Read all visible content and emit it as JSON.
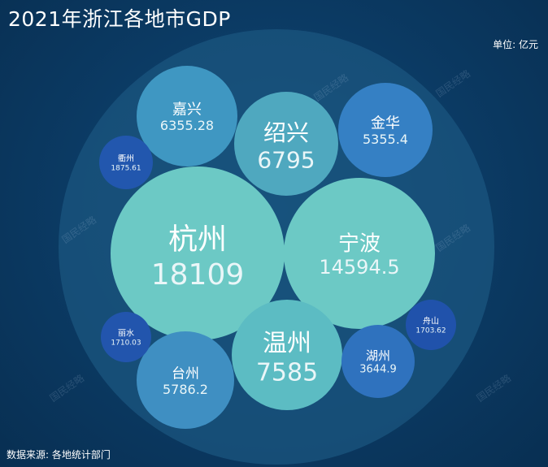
{
  "header": {
    "title": "2021年浙江各地市GDP",
    "unit": "单位: 亿元"
  },
  "footer": {
    "source": "数据来源: 各地统计部门"
  },
  "watermark": "国民经略",
  "chart_data": {
    "type": "bubble",
    "title": "2021年浙江各地市GDP",
    "unit": "亿元",
    "categories": [
      "杭州",
      "宁波",
      "温州",
      "绍兴",
      "嘉兴",
      "台州",
      "金华",
      "湖州",
      "衢州",
      "丽水",
      "舟山"
    ],
    "values": [
      "18109",
      "14594.5",
      "7585",
      "6795",
      "6355.28",
      "5786.2",
      "5355.4",
      "3644.9",
      "1875.61",
      "1710.03",
      "1703.62"
    ],
    "colors": [
      "#6cc9c5",
      "#6cc9c5",
      "#5cbcc3",
      "#4fa8bf",
      "#3f97c2",
      "#3f8fc2",
      "#3580c4",
      "#2f72be",
      "#2257ae",
      "#2255ad",
      "#2052ab"
    ]
  }
}
